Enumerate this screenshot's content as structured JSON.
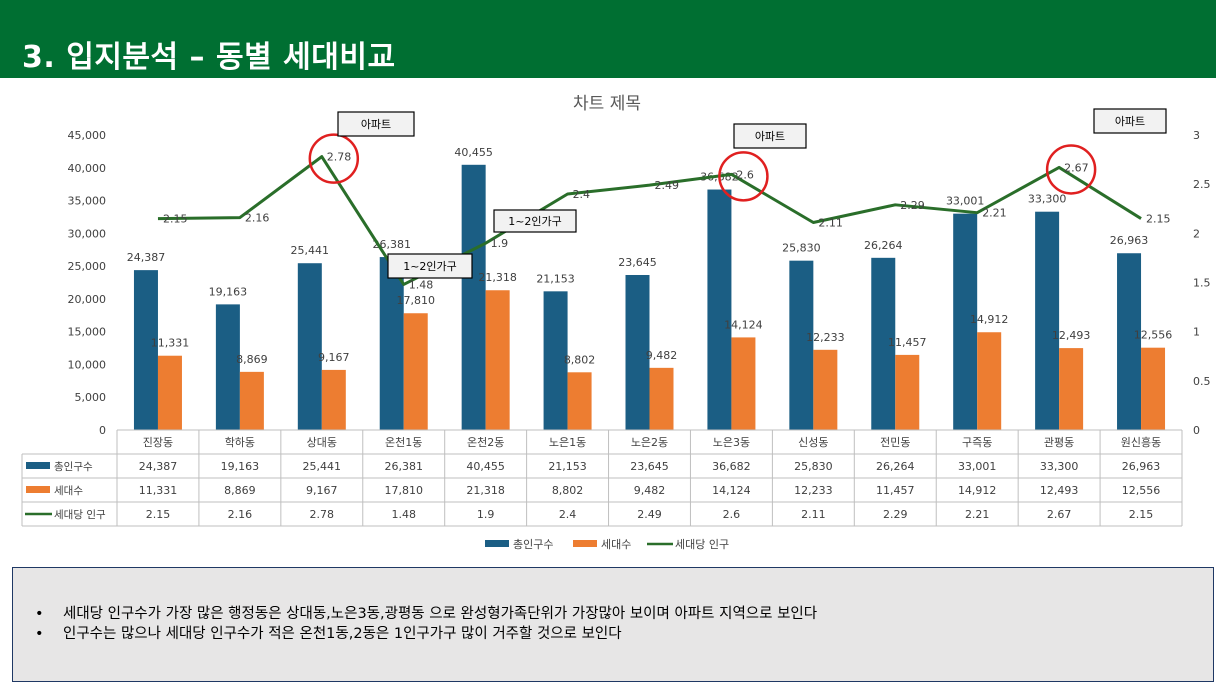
{
  "header": {
    "title": "3. 입지분석 – 동별 세대비교"
  },
  "chart_data": {
    "type": "bar",
    "title": "차트 제목",
    "categories": [
      "진장동",
      "학하동",
      "상대동",
      "온천1동",
      "온천2동",
      "노은1동",
      "노은2동",
      "노은3동",
      "신성동",
      "전민동",
      "구즉동",
      "관평동",
      "원신흥동"
    ],
    "series": [
      {
        "name": "총인구수",
        "type": "bar",
        "axis": "left",
        "color": "#1b5e84",
        "values": [
          24387,
          19163,
          25441,
          26381,
          40455,
          21153,
          23645,
          36682,
          25830,
          26264,
          33001,
          33300,
          26963
        ],
        "labels": [
          "24,387",
          "19,163",
          "25,441",
          "26,381",
          "40,455",
          "21,153",
          "23,645",
          "36,682",
          "25,830",
          "26,264",
          "33,001",
          "33,300",
          "26,963"
        ]
      },
      {
        "name": "세대수",
        "type": "bar",
        "axis": "left",
        "color": "#ed7d31",
        "values": [
          11331,
          8869,
          9167,
          17810,
          21318,
          8802,
          9482,
          14124,
          12233,
          11457,
          14912,
          12493,
          12556
        ],
        "labels": [
          "11,331",
          "8,869",
          "9,167",
          "17,810",
          "21,318",
          "8,802",
          "9,482",
          "14,124",
          "12,233",
          "11,457",
          "14,912",
          "12,493",
          "12,556"
        ]
      },
      {
        "name": "세대당 인구",
        "type": "line",
        "axis": "right",
        "color": "#2a6e2a",
        "values": [
          2.15,
          2.16,
          2.78,
          1.48,
          1.9,
          2.4,
          2.49,
          2.6,
          2.11,
          2.29,
          2.21,
          2.67,
          2.15
        ],
        "labels": [
          "2.15",
          "2.16",
          "2.78",
          "1.48",
          "1.9",
          "2.4",
          "2.49",
          "2.6",
          "2.11",
          "2.29",
          "2.21",
          "2.67",
          "2.15"
        ]
      }
    ],
    "ylim_left": [
      0,
      45000
    ],
    "yticks_left": [
      "0",
      "5,000",
      "10,000",
      "15,000",
      "20,000",
      "25,000",
      "30,000",
      "35,000",
      "40,000",
      "45,000"
    ],
    "ylim_right": [
      0,
      3
    ],
    "yticks_right": [
      "0",
      "0.5",
      "1",
      "1.5",
      "2",
      "2.5",
      "3"
    ],
    "grid": false,
    "legend": "bottom",
    "data_table": true,
    "annotations": {
      "circled_indices": [
        2,
        7,
        11
      ],
      "callouts": [
        {
          "text": "아파트",
          "index": 2
        },
        {
          "text": "아파트",
          "index": 7
        },
        {
          "text": "아파트",
          "index": 11
        },
        {
          "text": "1~2인가구",
          "index": 3
        },
        {
          "text": "1~2인가구",
          "index": 4
        }
      ]
    }
  },
  "notes": [
    "세대당 인구수가 가장 많은 행정동은 상대동,노은3동,광평동 으로 완성형가족단위가 가장많아 보이며 아파트 지역으로 보인다",
    "인구수는 많으나 세대당 인구수가 적은 온천1동,2동은 1인구가구 많이 거주할 것으로 보인다"
  ]
}
